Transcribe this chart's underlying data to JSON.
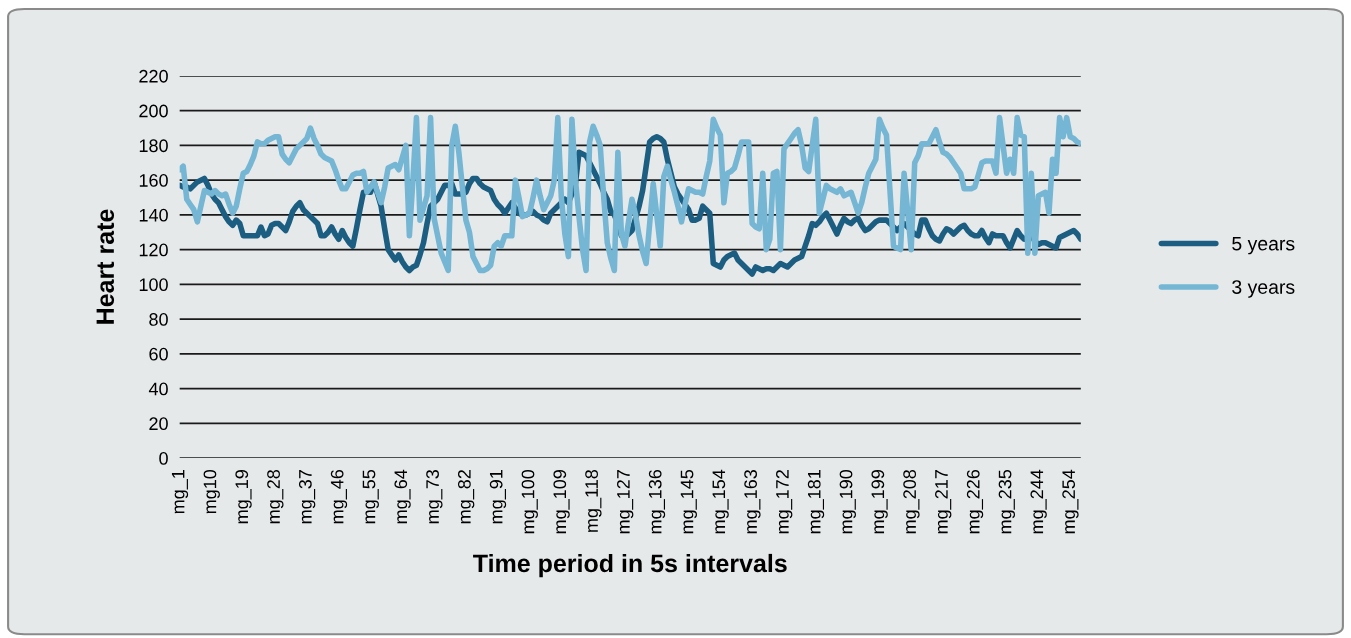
{
  "chart_data": {
    "type": "line",
    "xlabel": "Time period in 5s intervals",
    "ylabel": "Heart rate",
    "categories": [
      "mg_1",
      null,
      null,
      null,
      null,
      null,
      null,
      null,
      null,
      "mg10",
      null,
      null,
      null,
      null,
      null,
      null,
      null,
      null,
      "mg_19",
      null,
      null,
      null,
      null,
      null,
      null,
      null,
      null,
      "mg_28",
      null,
      null,
      null,
      null,
      null,
      null,
      null,
      null,
      "mg_37",
      null,
      null,
      null,
      null,
      null,
      null,
      null,
      null,
      "mg_46",
      null,
      null,
      null,
      null,
      null,
      null,
      null,
      null,
      "mg_55",
      null,
      null,
      null,
      null,
      null,
      null,
      null,
      null,
      "mg_64",
      null,
      null,
      null,
      null,
      null,
      null,
      null,
      null,
      "mg_73",
      null,
      null,
      null,
      null,
      null,
      null,
      null,
      null,
      "mg_82",
      null,
      null,
      null,
      null,
      null,
      null,
      null,
      null,
      "mg_91",
      null,
      null,
      null,
      null,
      null,
      null,
      null,
      null,
      "mg_100",
      null,
      null,
      null,
      null,
      null,
      null,
      null,
      null,
      "mg_109",
      null,
      null,
      null,
      null,
      null,
      null,
      null,
      null,
      "mg_118",
      null,
      null,
      null,
      null,
      null,
      null,
      null,
      null,
      "mg_127",
      null,
      null,
      null,
      null,
      null,
      null,
      null,
      null,
      "mg_136",
      null,
      null,
      null,
      null,
      null,
      null,
      null,
      null,
      "mg_145",
      null,
      null,
      null,
      null,
      null,
      null,
      null,
      null,
      "mg_154",
      null,
      null,
      null,
      null,
      null,
      null,
      null,
      null,
      "mg_163",
      null,
      null,
      null,
      null,
      null,
      null,
      null,
      null,
      "mg_172",
      null,
      null,
      null,
      null,
      null,
      null,
      null,
      null,
      "mg_181",
      null,
      null,
      null,
      null,
      null,
      null,
      null,
      null,
      "mg_190",
      null,
      null,
      null,
      null,
      null,
      null,
      null,
      null,
      "mg_199",
      null,
      null,
      null,
      null,
      null,
      null,
      null,
      null,
      "mg_208",
      null,
      null,
      null,
      null,
      null,
      null,
      null,
      null,
      "mg_217",
      null,
      null,
      null,
      null,
      null,
      null,
      null,
      null,
      "mg_226",
      null,
      null,
      null,
      null,
      null,
      null,
      null,
      null,
      "mg_235",
      null,
      null,
      null,
      null,
      null,
      null,
      null,
      null,
      "mg_244",
      null,
      null,
      null,
      null,
      null,
      null,
      null,
      null,
      "mg_254",
      null,
      null,
      null
    ],
    "series": [
      {
        "name": "5 years",
        "color": "#1b5e82",
        "values": [
          157,
          156,
          156,
          155,
          157,
          159,
          160,
          161,
          157,
          152,
          149,
          147,
          143,
          139,
          136,
          134,
          137,
          135,
          128,
          128,
          128,
          128,
          128,
          133,
          128,
          129,
          134,
          135,
          135,
          133,
          131,
          136,
          142,
          145,
          147,
          143,
          141,
          139,
          137,
          135,
          128,
          128,
          130,
          133,
          129,
          126,
          131,
          127,
          124,
          122,
          132,
          143,
          153,
          153,
          153,
          159,
          152,
          145,
          132,
          120,
          117,
          114,
          117,
          113,
          110,
          108,
          110,
          111,
          117,
          124,
          135,
          145,
          147,
          149,
          153,
          157,
          157,
          158,
          152,
          152,
          152,
          153,
          158,
          161,
          161,
          158,
          156,
          155,
          154,
          149,
          146,
          144,
          141,
          144,
          147,
          144,
          141,
          140,
          140,
          141,
          142,
          140,
          139,
          137,
          136,
          141,
          143,
          145,
          147,
          149,
          147,
          152,
          158,
          176,
          175,
          174,
          170,
          166,
          162,
          158,
          153,
          149,
          142,
          140,
          135,
          128,
          127,
          129,
          131,
          138,
          145,
          154,
          168,
          182,
          184,
          185,
          184,
          182,
          172,
          164,
          156,
          152,
          149,
          146,
          143,
          137,
          137,
          138,
          145,
          143,
          141,
          112,
          111,
          110,
          114,
          116,
          117,
          118,
          114,
          112,
          110,
          108,
          106,
          110,
          109,
          108,
          109,
          109,
          108,
          110,
          112,
          111,
          110,
          112,
          114,
          115,
          116,
          122,
          128,
          135,
          134,
          136,
          139,
          141,
          137,
          133,
          129,
          134,
          138,
          136,
          135,
          137,
          138,
          134,
          131,
          132,
          134,
          136,
          137,
          137,
          137,
          135,
          133,
          131,
          133,
          135,
          133,
          131,
          129,
          128,
          137,
          137,
          132,
          128,
          126,
          125,
          129,
          132,
          131,
          129,
          131,
          133,
          134,
          131,
          129,
          128,
          128,
          131,
          127,
          124,
          129,
          128,
          128,
          128,
          124,
          121,
          126,
          131,
          128,
          126,
          126,
          128,
          125,
          123,
          124,
          124,
          123,
          122,
          121,
          127,
          128,
          129,
          130,
          131,
          129,
          126
        ]
      },
      {
        "name": "3 years",
        "color": "#74b6d4",
        "values": [
          166,
          168,
          149,
          146,
          143,
          136,
          145,
          154,
          153,
          152,
          154,
          152,
          151,
          152,
          146,
          141,
          145,
          155,
          164,
          165,
          169,
          174,
          182,
          181,
          181,
          183,
          184,
          185,
          185,
          175,
          172,
          170,
          174,
          178,
          180,
          182,
          184,
          190,
          184,
          180,
          175,
          173,
          172,
          171,
          166,
          160,
          155,
          155,
          159,
          163,
          164,
          164,
          165,
          153,
          156,
          159,
          153,
          147,
          156,
          167,
          168,
          169,
          166,
          173,
          180,
          128,
          160,
          196,
          137,
          144,
          151,
          196,
          138,
          128,
          118,
          113,
          108,
          180,
          191,
          176,
          156,
          137,
          130,
          116,
          112,
          108,
          108,
          109,
          111,
          122,
          124,
          122,
          128,
          128,
          128,
          160,
          150,
          139,
          140,
          141,
          150,
          160,
          151,
          143,
          147,
          151,
          160,
          196,
          150,
          129,
          116,
          195,
          160,
          139,
          120,
          108,
          182,
          191,
          186,
          180,
          150,
          124,
          115,
          108,
          176,
          129,
          122,
          136,
          149,
          140,
          128,
          119,
          112,
          135,
          158,
          140,
          122,
          162,
          168,
          160,
          153,
          145,
          136,
          146,
          155,
          154,
          153,
          153,
          152,
          162,
          171,
          195,
          190,
          186,
          147,
          164,
          165,
          167,
          174,
          182,
          182,
          182,
          135,
          133,
          132,
          164,
          120,
          126,
          164,
          165,
          120,
          178,
          181,
          184,
          187,
          189,
          180,
          167,
          165,
          180,
          195,
          141,
          149,
          157,
          155,
          154,
          153,
          155,
          151,
          152,
          153,
          147,
          141,
          147,
          156,
          164,
          168,
          172,
          195,
          190,
          186,
          154,
          122,
          121,
          120,
          164,
          142,
          120,
          170,
          174,
          181,
          181,
          181,
          185,
          189,
          182,
          176,
          175,
          173,
          170,
          167,
          164,
          155,
          155,
          155,
          156,
          163,
          170,
          171,
          171,
          171,
          164,
          196,
          180,
          164,
          172,
          164,
          196,
          186,
          185,
          118,
          164,
          118,
          151,
          152,
          153,
          141,
          172,
          164,
          196,
          185,
          196,
          185,
          184,
          182,
          181
        ]
      }
    ],
    "ylim": [
      0,
      220
    ],
    "yticks": [
      0,
      20,
      40,
      60,
      80,
      100,
      120,
      140,
      160,
      180,
      200,
      220
    ],
    "grid": "y",
    "legend": "right",
    "marker": "none",
    "line_style": "solid"
  }
}
